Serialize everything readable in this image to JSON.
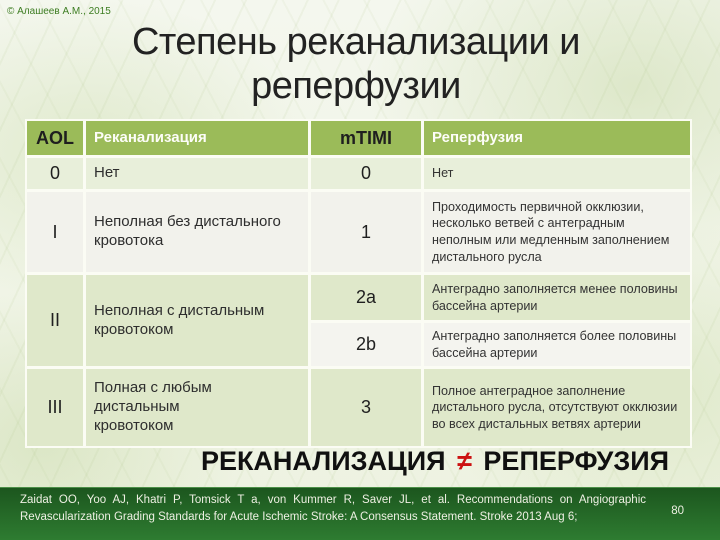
{
  "slide": {
    "copyright": "© Алашеев А.М., 2015",
    "title_line1": "Степень реканализации и",
    "title_line2": "реперфузии",
    "statement": {
      "left": "РЕКАНАЛИЗАЦИЯ",
      "not_equal_sign": "≠",
      "right": "РЕПЕРФУЗИЯ"
    },
    "footer": {
      "citation": "Zaidat OO, Yoo AJ, Khatri P, Tomsick T a, von Kummer R, Saver JL, et al. Recommendations on Angiographic Revascularization Grading Standards for Acute Ischemic Stroke: A Consensus Statement. Stroke 2013 Aug 6;",
      "page_number": "80"
    }
  },
  "table": {
    "header": {
      "aol": "AOL",
      "recan": "Реканализация",
      "mtimi": "mTIMI",
      "reperf": "Реперфузия"
    },
    "row0": {
      "aol": "0",
      "recan": "Нет",
      "mtimi": "0",
      "reperf": "Нет"
    },
    "rowI": {
      "aol": "I",
      "recan": "Неполная без дистального кровотока",
      "mtimi": "1",
      "reperf": "Проходимость первичной окклюзии, несколько ветвей с антеградным неполным или медленным заполнением дистального русла"
    },
    "rowII": {
      "aol": "II",
      "recan": "Неполная с дистальным кровотоком",
      "sub_2a": {
        "mtimi": "2a",
        "reperf": "Антеградно заполняется менее половины бассейна артерии"
      },
      "sub_2b": {
        "mtimi": "2b",
        "reperf": "Антеградно заполняется более половины бассейна артерии"
      }
    },
    "rowIII": {
      "aol": "III",
      "recan": "Полная с любым дистальным кровотоком",
      "mtimi": "3",
      "reperf": "Полное антеградное заполнение дистального русла, отсутствуют окклюзии во всех дистальных ветвях артерии"
    }
  },
  "colors": {
    "header_green": "#9bbb59",
    "band_light_green": "#e8efda",
    "band_white": "#f2f2ec",
    "footer_green": "#2e7c31",
    "not_equal_red": "#cc1111",
    "copyright_green": "#3d7d22"
  }
}
